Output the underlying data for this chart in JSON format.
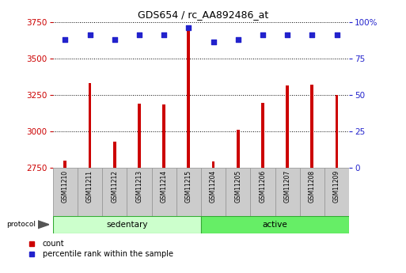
{
  "title": "GDS654 / rc_AA892486_at",
  "samples": [
    "GSM11210",
    "GSM11211",
    "GSM11212",
    "GSM11213",
    "GSM11214",
    "GSM11215",
    "GSM11204",
    "GSM11205",
    "GSM11206",
    "GSM11207",
    "GSM11208",
    "GSM11209"
  ],
  "count_values": [
    2800,
    3330,
    2930,
    3190,
    3185,
    3710,
    2795,
    3010,
    3195,
    3315,
    3320,
    3250
  ],
  "percentile_values": [
    88,
    91,
    88,
    91,
    91,
    96,
    86,
    88,
    91,
    91,
    91,
    91
  ],
  "groups": [
    {
      "label": "sedentary",
      "indices": [
        0,
        1,
        2,
        3,
        4,
        5
      ]
    },
    {
      "label": "active",
      "indices": [
        6,
        7,
        8,
        9,
        10,
        11
      ]
    }
  ],
  "ylim_left": [
    2750,
    3750
  ],
  "ylim_right": [
    0,
    100
  ],
  "yticks_left": [
    2750,
    3000,
    3250,
    3500,
    3750
  ],
  "yticks_right": [
    0,
    25,
    50,
    75,
    100
  ],
  "bar_color": "#cc0000",
  "dot_color": "#2222cc",
  "group_colors": [
    "#ccffcc",
    "#66ee66"
  ],
  "group_edge_color": "#33aa33",
  "legend_label_count": "count",
  "legend_label_pct": "percentile rank within the sample",
  "protocol_label": "protocol",
  "left_tick_color": "#cc0000",
  "right_tick_color": "#2222cc",
  "grid_color": "#000000",
  "xtick_box_color": "#cccccc",
  "xtick_box_edge": "#999999"
}
